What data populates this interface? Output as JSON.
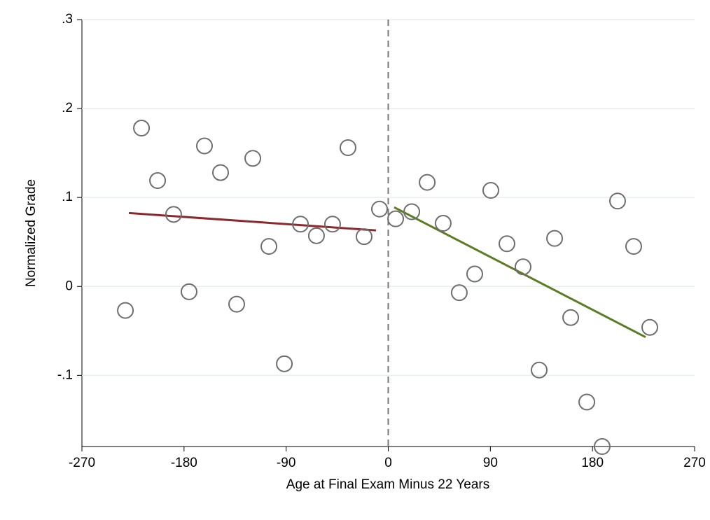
{
  "chart_data": {
    "type": "scatter",
    "x_label": "Age at Final Exam Minus 22 Years",
    "y_label": "Normalized Grade",
    "xlim": [
      -270,
      270
    ],
    "xticks": [
      -270,
      -180,
      -90,
      0,
      90,
      180,
      270
    ],
    "ylim": [
      -0.18,
      0.3
    ],
    "yticks": [
      {
        "value": -0.1,
        "label": "-.1"
      },
      0,
      {
        "value": 0.1,
        "label": ".1"
      },
      {
        "value": 0.2,
        "label": ".2"
      },
      {
        "value": 0.3,
        "label": ".3"
      }
    ],
    "grid": true,
    "xline": 0,
    "series": [
      {
        "color": "#6e6e6e",
        "x": [
          -231.7,
          -217.5,
          -203.3,
          -189.2,
          -175.6,
          -162,
          -147.8,
          -133.6,
          -119.4,
          -105.2,
          -91.6,
          -77.4,
          -63.3,
          -49.1,
          -35.5,
          -21.3,
          -7.7,
          6.5,
          20.7,
          34.3,
          48.4,
          62.6,
          76.2,
          90.4,
          104.6,
          118.8,
          133,
          146.6,
          160.8,
          175,
          188.5,
          202.1,
          216.3,
          230.5
        ],
        "values": [
          -0.027,
          0.178,
          0.119,
          0.081,
          -0.006,
          0.158,
          0.128,
          -0.02,
          0.144,
          0.045,
          -0.087,
          0.07,
          0.057,
          0.07,
          0.156,
          0.056,
          0.087,
          0.076,
          0.084,
          0.117,
          0.071,
          -0.007,
          0.014,
          0.108,
          0.048,
          0.022,
          -0.094,
          0.054,
          -0.035,
          -0.13,
          -0.18,
          0.096,
          0.045,
          -0.046
        ]
      }
    ],
    "fit_lines": [
      {
        "color": "#8b2a2e",
        "x": [
          -228.6,
          -10.8
        ],
        "values": [
          0.0825,
          0.063
        ]
      },
      {
        "color": "#5b7d25",
        "x": [
          5.2,
          226.8
        ],
        "values": [
          0.089,
          -0.057
        ]
      }
    ]
  }
}
